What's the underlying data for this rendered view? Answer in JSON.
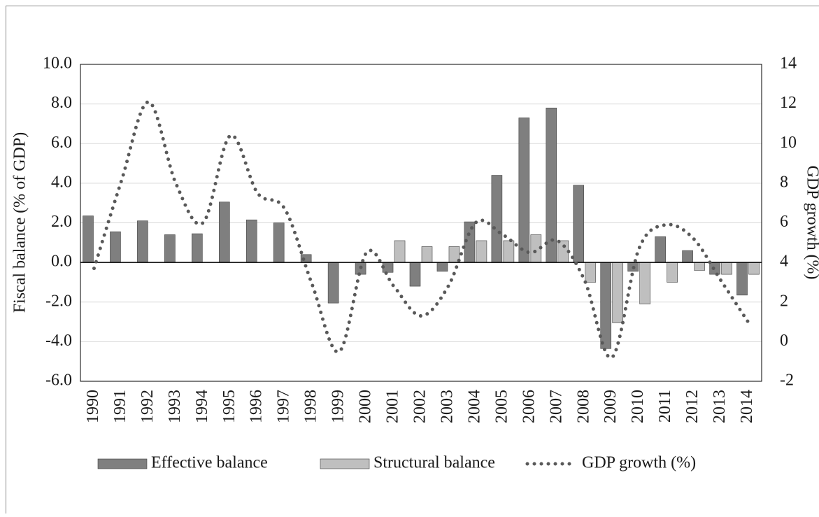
{
  "chart_data": {
    "type": "bar",
    "y_label": "Fiscal balance (% of GDP)",
    "y2_label": "GDP growth (%)",
    "categories": [
      "1990",
      "1991",
      "1992",
      "1993",
      "1994",
      "1995",
      "1996",
      "1997",
      "1998",
      "1999",
      "2000",
      "2001",
      "2002",
      "2003",
      "2004",
      "2005",
      "2006",
      "2007",
      "2008",
      "2009",
      "2010",
      "2011",
      "2012",
      "2013",
      "2014"
    ],
    "series": [
      {
        "name": "Effective balance",
        "type": "bar",
        "color": "#7f7f7f",
        "values": [
          2.35,
          1.55,
          2.1,
          1.4,
          1.45,
          3.05,
          2.15,
          2.0,
          0.4,
          -2.05,
          -0.6,
          -0.5,
          -1.2,
          -0.45,
          2.05,
          4.4,
          7.3,
          7.8,
          3.9,
          -4.35,
          -0.45,
          1.3,
          0.6,
          -0.6,
          -1.65
        ]
      },
      {
        "name": "Structural balance",
        "type": "bar",
        "color": "#bfbfbf",
        "values": [
          null,
          null,
          null,
          null,
          null,
          null,
          null,
          null,
          null,
          null,
          null,
          1.1,
          0.8,
          0.8,
          1.1,
          1.1,
          1.4,
          1.1,
          -1.0,
          -3.05,
          -2.1,
          -1.0,
          -0.4,
          -0.6,
          -0.6
        ]
      },
      {
        "name": "GDP growth (%)",
        "type": "line",
        "axis": "y2",
        "color": "#595959",
        "values": [
          3.7,
          8.1,
          12.1,
          8.0,
          6.0,
          10.4,
          7.5,
          6.7,
          2.9,
          -0.5,
          4.5,
          2.8,
          1.3,
          2.8,
          6.0,
          5.4,
          4.5,
          5.1,
          3.1,
          -0.8,
          4.7,
          5.9,
          5.2,
          3.1,
          1.0
        ]
      }
    ],
    "ylim": [
      -6,
      10
    ],
    "yticks": [
      {
        "value": -6,
        "label": "-6.0"
      },
      {
        "value": -4,
        "label": "-4.0"
      },
      {
        "value": -2,
        "label": "-2.0"
      },
      {
        "value": 0,
        "label": "0.0"
      },
      {
        "value": 2,
        "label": "2.0"
      },
      {
        "value": 4,
        "label": "4.0"
      },
      {
        "value": 6,
        "label": "6.0"
      },
      {
        "value": 8,
        "label": "8.0"
      },
      {
        "value": 10,
        "label": "10.0"
      }
    ],
    "y2lim": [
      -2,
      14
    ],
    "y2ticks": [
      -2,
      0,
      2,
      4,
      6,
      8,
      10,
      12,
      14
    ],
    "grid": true,
    "legend": "bottom"
  }
}
